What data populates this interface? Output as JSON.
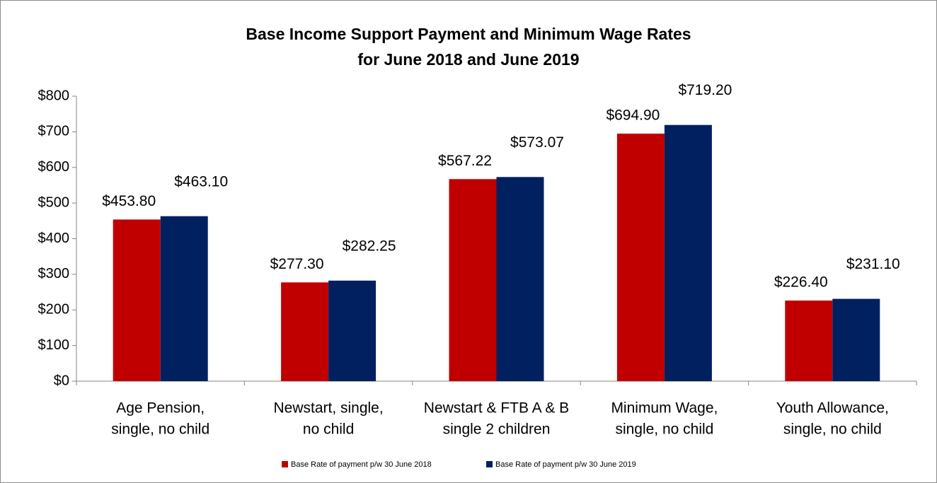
{
  "chart_data": {
    "type": "bar",
    "title": [
      "Base Income Support Payment and Minimum Wage Rates",
      "for June 2018 and June 2019"
    ],
    "categories": [
      [
        "Age Pension,",
        "single, no child"
      ],
      [
        "Newstart, single,",
        "no child"
      ],
      [
        "Newstart & FTB A & B",
        "single 2 children"
      ],
      [
        "Minimum Wage,",
        "single, no child"
      ],
      [
        "Youth Allowance,",
        "single, no child"
      ]
    ],
    "series": [
      {
        "name": "Base Rate of payment p/w 30 June 2018",
        "color": "#c00000",
        "values": [
          453.8,
          277.3,
          567.22,
          694.9,
          226.4
        ],
        "value_labels": [
          "$453.80",
          "$277.30",
          "$567.22",
          "$694.90",
          "$226.40"
        ]
      },
      {
        "name": "Base Rate of payment p/w 30 June 2019",
        "color": "#002060",
        "values": [
          463.1,
          282.25,
          573.07,
          719.2,
          231.1
        ],
        "value_labels": [
          "$463.10",
          "$282.25",
          "$573.07",
          "$719.20",
          "$231.10"
        ]
      }
    ],
    "ylim": [
      0,
      800
    ],
    "yticks": [
      {
        "value": 0,
        "label": "$0"
      },
      {
        "value": 100,
        "label": "$100"
      },
      {
        "value": 200,
        "label": "$200"
      },
      {
        "value": 300,
        "label": "$300"
      },
      {
        "value": 400,
        "label": "$400"
      },
      {
        "value": 500,
        "label": "$500"
      },
      {
        "value": 600,
        "label": "$600"
      },
      {
        "value": 700,
        "label": "$700"
      },
      {
        "value": 800,
        "label": "$800"
      }
    ],
    "grid": false,
    "legend": "bottom"
  }
}
